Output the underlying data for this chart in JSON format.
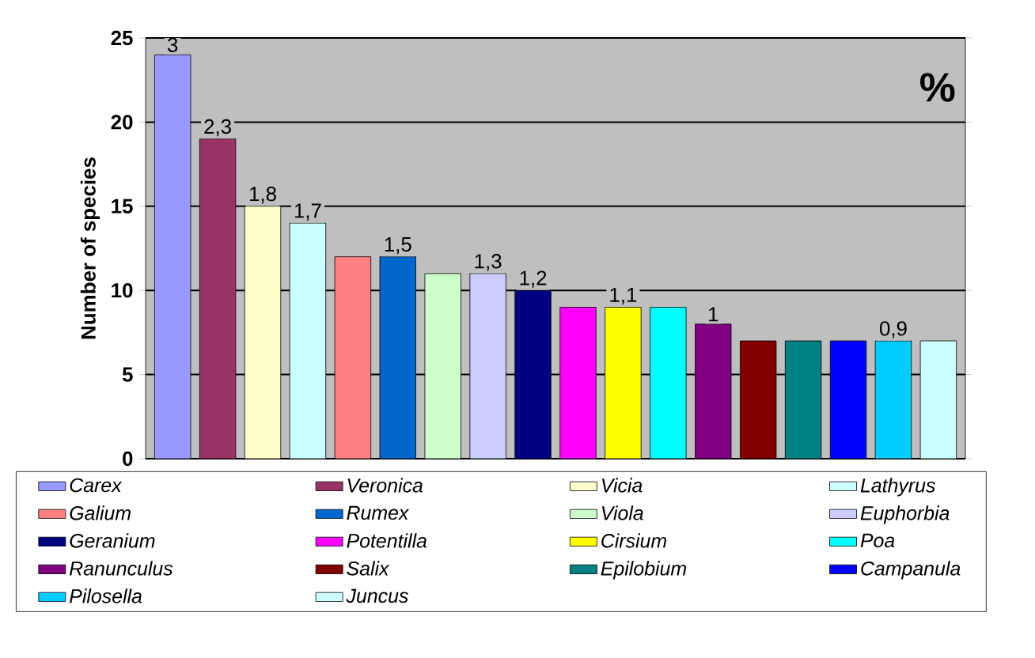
{
  "chart_data": {
    "type": "bar",
    "ylabel": "Number of species",
    "categories": [
      null,
      null,
      null,
      null,
      null,
      null,
      null,
      null,
      null,
      null,
      null,
      null,
      null,
      null,
      null,
      null,
      null,
      null
    ],
    "series": [
      {
        "name": "Carex",
        "color": "#9999ff",
        "values": [
          24,
          null,
          null,
          null,
          null,
          null,
          null,
          null,
          null,
          null,
          null,
          null,
          null,
          null,
          null,
          null,
          null,
          null
        ]
      },
      {
        "name": "Veronica",
        "color": "#993366",
        "values": [
          null,
          19,
          null,
          null,
          null,
          null,
          null,
          null,
          null,
          null,
          null,
          null,
          null,
          null,
          null,
          null,
          null,
          null
        ]
      },
      {
        "name": "Vicia",
        "color": "#ffffcc",
        "values": [
          null,
          null,
          15,
          null,
          null,
          null,
          null,
          null,
          null,
          null,
          null,
          null,
          null,
          null,
          null,
          null,
          null,
          null
        ]
      },
      {
        "name": "Lathyrus",
        "color": "#ccffff",
        "values": [
          null,
          null,
          null,
          14,
          null,
          null,
          null,
          null,
          null,
          null,
          null,
          null,
          null,
          null,
          null,
          null,
          null,
          null
        ]
      },
      {
        "name": "Galium",
        "color": "#ff8080",
        "values": [
          null,
          null,
          null,
          null,
          12,
          null,
          null,
          null,
          null,
          null,
          null,
          null,
          null,
          null,
          null,
          null,
          null,
          null
        ]
      },
      {
        "name": "Rumex",
        "color": "#0066cc",
        "values": [
          null,
          null,
          null,
          null,
          null,
          12,
          null,
          null,
          null,
          null,
          null,
          null,
          null,
          null,
          null,
          null,
          null,
          null
        ]
      },
      {
        "name": "Viola",
        "color": "#ccffcc",
        "values": [
          null,
          null,
          null,
          null,
          null,
          null,
          11,
          null,
          null,
          null,
          null,
          null,
          null,
          null,
          null,
          null,
          null,
          null
        ]
      },
      {
        "name": "Euphorbia",
        "color": "#ccccff",
        "values": [
          null,
          null,
          null,
          null,
          null,
          null,
          null,
          11,
          null,
          null,
          null,
          null,
          null,
          null,
          null,
          null,
          null,
          null
        ]
      },
      {
        "name": "Geranium",
        "color": "#000080",
        "values": [
          null,
          null,
          null,
          null,
          null,
          null,
          null,
          null,
          10,
          null,
          null,
          null,
          null,
          null,
          null,
          null,
          null,
          null
        ]
      },
      {
        "name": "Potentilla",
        "color": "#ff00ff",
        "values": [
          null,
          null,
          null,
          null,
          null,
          null,
          null,
          null,
          null,
          9,
          null,
          null,
          null,
          null,
          null,
          null,
          null,
          null
        ]
      },
      {
        "name": "Cirsium",
        "color": "#ffff00",
        "values": [
          null,
          null,
          null,
          null,
          null,
          null,
          null,
          null,
          null,
          null,
          9,
          null,
          null,
          null,
          null,
          null,
          null,
          null
        ]
      },
      {
        "name": "Poa",
        "color": "#00ffff",
        "values": [
          null,
          null,
          null,
          null,
          null,
          null,
          null,
          null,
          null,
          null,
          null,
          9,
          null,
          null,
          null,
          null,
          null,
          null
        ]
      },
      {
        "name": "Ranunculus",
        "color": "#800080",
        "values": [
          null,
          null,
          null,
          null,
          null,
          null,
          null,
          null,
          null,
          null,
          null,
          null,
          8,
          null,
          null,
          null,
          null,
          null
        ]
      },
      {
        "name": "Salix",
        "color": "#800000",
        "values": [
          null,
          null,
          null,
          null,
          null,
          null,
          null,
          null,
          null,
          null,
          null,
          null,
          null,
          7,
          null,
          null,
          null,
          null
        ]
      },
      {
        "name": "Epilobium",
        "color": "#008080",
        "values": [
          null,
          null,
          null,
          null,
          null,
          null,
          null,
          null,
          null,
          null,
          null,
          null,
          null,
          null,
          7,
          null,
          null,
          null
        ]
      },
      {
        "name": "Campanula",
        "color": "#0000ff",
        "values": [
          null,
          null,
          null,
          null,
          null,
          null,
          null,
          null,
          null,
          null,
          null,
          null,
          null,
          null,
          null,
          7,
          null,
          null
        ]
      },
      {
        "name": "Pilosella",
        "color": "#00ccff",
        "values": [
          null,
          null,
          null,
          null,
          null,
          null,
          null,
          null,
          null,
          null,
          null,
          null,
          null,
          null,
          null,
          null,
          7,
          null
        ]
      },
      {
        "name": "Juncus",
        "color": "#ccffff",
        "values": [
          null,
          null,
          null,
          null,
          null,
          null,
          null,
          null,
          null,
          null,
          null,
          null,
          null,
          null,
          null,
          null,
          null,
          7
        ]
      }
    ],
    "annotations": [
      "%",
      {
        "text": "3",
        "y": 24
      },
      {
        "text": "2,3",
        "y": 19
      },
      {
        "text": "1,8",
        "y": 15
      },
      {
        "text": "1,7",
        "y": 14
      },
      {
        "text": "1,5",
        "y": 12
      },
      {
        "text": "1,3",
        "y": 11
      },
      {
        "text": "1,2",
        "y": 10
      },
      {
        "text": "1,1",
        "y": 9
      },
      {
        "text": "1",
        "y": 8
      },
      {
        "text": "0,9",
        "y": 7
      }
    ],
    "ylim": [
      0,
      25
    ],
    "yticks": [
      0,
      5,
      10,
      15,
      20,
      25
    ],
    "grid": "y",
    "legend": "bottom",
    "tick_labels": "y"
  }
}
